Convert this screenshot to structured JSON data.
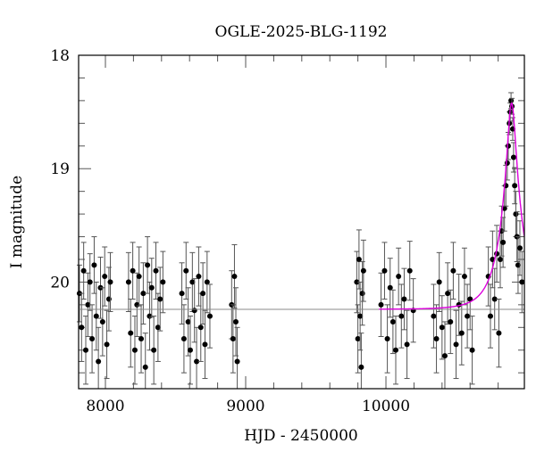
{
  "chart_data": {
    "type": "scatter",
    "title": "OGLE-2025-BLG-1192",
    "xlabel": "HJD - 2450000",
    "ylabel": "I magnitude",
    "xlim": [
      7809,
      10987
    ],
    "ylim": [
      20.94,
      18.0
    ],
    "y_inverted": true,
    "x_ticks": [
      8000,
      9000,
      10000
    ],
    "y_ticks": [
      18,
      19,
      20
    ],
    "grid": false,
    "colors": {
      "points": "#000000",
      "errorbars": "#555555",
      "model": "#dd00dd",
      "baseline": "#888888"
    },
    "model": {
      "type": "point-lens",
      "t0": 10896,
      "u0": 0.19,
      "tE": 150,
      "baseline_mag": 20.24
    },
    "points": [
      [
        7815,
        20.1,
        0.25
      ],
      [
        7830,
        20.4,
        0.3
      ],
      [
        7845,
        19.9,
        0.25
      ],
      [
        7860,
        20.6,
        0.3
      ],
      [
        7875,
        20.2,
        0.28
      ],
      [
        7890,
        20.0,
        0.25
      ],
      [
        7905,
        20.5,
        0.3
      ],
      [
        7920,
        19.85,
        0.25
      ],
      [
        7935,
        20.3,
        0.3
      ],
      [
        7950,
        20.7,
        0.3
      ],
      [
        7965,
        20.05,
        0.27
      ],
      [
        7980,
        20.35,
        0.3
      ],
      [
        7995,
        19.95,
        0.26
      ],
      [
        8010,
        20.55,
        0.3
      ],
      [
        8025,
        20.15,
        0.28
      ],
      [
        8035,
        20.0,
        0.26
      ],
      [
        8165,
        20.0,
        0.26
      ],
      [
        8180,
        20.45,
        0.3
      ],
      [
        8195,
        19.9,
        0.25
      ],
      [
        8210,
        20.6,
        0.3
      ],
      [
        8225,
        20.2,
        0.28
      ],
      [
        8240,
        19.95,
        0.26
      ],
      [
        8255,
        20.5,
        0.3
      ],
      [
        8270,
        20.1,
        0.27
      ],
      [
        8285,
        20.75,
        0.3
      ],
      [
        8300,
        19.85,
        0.25
      ],
      [
        8315,
        20.3,
        0.3
      ],
      [
        8330,
        20.05,
        0.26
      ],
      [
        8345,
        20.6,
        0.3
      ],
      [
        8360,
        19.9,
        0.25
      ],
      [
        8375,
        20.4,
        0.3
      ],
      [
        8390,
        20.15,
        0.28
      ],
      [
        8410,
        20.0,
        0.27
      ],
      [
        8545,
        20.1,
        0.27
      ],
      [
        8560,
        20.5,
        0.3
      ],
      [
        8575,
        19.9,
        0.25
      ],
      [
        8590,
        20.35,
        0.3
      ],
      [
        8605,
        20.6,
        0.3
      ],
      [
        8620,
        20.0,
        0.26
      ],
      [
        8635,
        20.25,
        0.28
      ],
      [
        8650,
        20.7,
        0.3
      ],
      [
        8665,
        19.95,
        0.26
      ],
      [
        8680,
        20.4,
        0.3
      ],
      [
        8695,
        20.1,
        0.27
      ],
      [
        8710,
        20.55,
        0.3
      ],
      [
        8725,
        20.0,
        0.27
      ],
      [
        8745,
        20.3,
        0.28
      ],
      [
        8900,
        20.2,
        0.3
      ],
      [
        8910,
        20.5,
        0.3
      ],
      [
        8920,
        19.95,
        0.28
      ],
      [
        8930,
        20.35,
        0.3
      ],
      [
        8940,
        20.7,
        0.3
      ],
      [
        9792,
        20.0,
        0.27
      ],
      [
        9800,
        20.5,
        0.3
      ],
      [
        9808,
        19.8,
        0.26
      ],
      [
        9816,
        20.3,
        0.3
      ],
      [
        9824,
        20.75,
        0.3
      ],
      [
        9832,
        20.1,
        0.28
      ],
      [
        9840,
        19.9,
        0.27
      ],
      [
        9965,
        20.2,
        0.28
      ],
      [
        9990,
        19.9,
        0.25
      ],
      [
        10010,
        20.5,
        0.3
      ],
      [
        10030,
        20.05,
        0.26
      ],
      [
        10050,
        20.35,
        0.28
      ],
      [
        10070,
        20.6,
        0.3
      ],
      [
        10090,
        19.95,
        0.25
      ],
      [
        10110,
        20.3,
        0.28
      ],
      [
        10130,
        20.15,
        0.27
      ],
      [
        10150,
        20.55,
        0.3
      ],
      [
        10170,
        19.9,
        0.26
      ],
      [
        10195,
        20.25,
        0.28
      ],
      [
        10340,
        20.3,
        0.28
      ],
      [
        10360,
        20.5,
        0.3
      ],
      [
        10380,
        20.0,
        0.26
      ],
      [
        10400,
        20.4,
        0.28
      ],
      [
        10420,
        20.65,
        0.3
      ],
      [
        10440,
        20.1,
        0.27
      ],
      [
        10460,
        20.35,
        0.28
      ],
      [
        10480,
        19.9,
        0.25
      ],
      [
        10500,
        20.55,
        0.3
      ],
      [
        10520,
        20.2,
        0.27
      ],
      [
        10540,
        20.45,
        0.28
      ],
      [
        10560,
        19.95,
        0.25
      ],
      [
        10580,
        20.3,
        0.28
      ],
      [
        10600,
        20.15,
        0.27
      ],
      [
        10615,
        20.6,
        0.3
      ],
      [
        10730,
        19.95,
        0.26
      ],
      [
        10745,
        20.3,
        0.28
      ],
      [
        10760,
        19.8,
        0.25
      ],
      [
        10775,
        20.15,
        0.27
      ],
      [
        10790,
        19.75,
        0.25
      ],
      [
        10805,
        20.45,
        0.3
      ],
      [
        10815,
        19.8,
        0.25
      ],
      [
        10825,
        19.55,
        0.22
      ],
      [
        10835,
        19.65,
        0.22
      ],
      [
        10845,
        19.35,
        0.2
      ],
      [
        10855,
        19.15,
        0.18
      ],
      [
        10865,
        18.95,
        0.15
      ],
      [
        10872,
        18.8,
        0.12
      ],
      [
        10880,
        18.6,
        0.1
      ],
      [
        10886,
        18.5,
        0.08
      ],
      [
        10892,
        18.4,
        0.07
      ],
      [
        10898,
        18.45,
        0.07
      ],
      [
        10904,
        18.65,
        0.1
      ],
      [
        10910,
        18.9,
        0.13
      ],
      [
        10918,
        19.15,
        0.16
      ],
      [
        10926,
        19.4,
        0.2
      ],
      [
        10934,
        19.6,
        0.22
      ],
      [
        10942,
        19.85,
        0.25
      ],
      [
        10955,
        19.7,
        0.24
      ],
      [
        10970,
        20.0,
        0.27
      ]
    ]
  }
}
